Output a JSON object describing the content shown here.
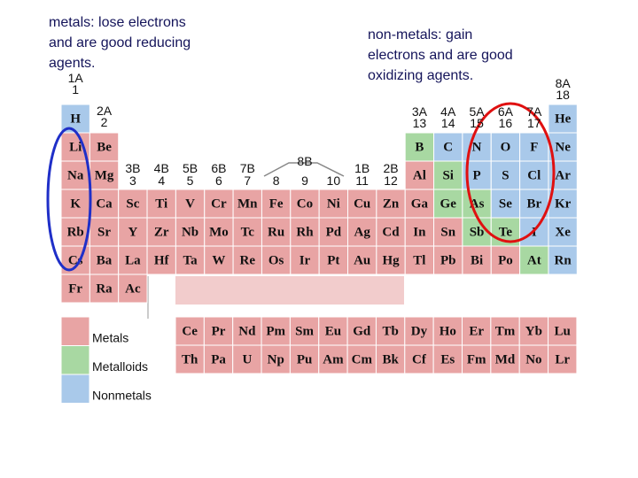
{
  "left_caption": [
    "metals: lose electrons",
    "and are good reducing",
    "agents."
  ],
  "right_caption": [
    "non-metals: gain",
    "electrons and are good",
    "oxidizing agents."
  ],
  "group_labels": [
    "1A",
    "1",
    "2A",
    "2",
    "3B",
    "3",
    "4B",
    "4",
    "5B",
    "5",
    "6B",
    "6",
    "7B",
    "7",
    "8B",
    "8",
    "9",
    "10",
    "1B",
    "11",
    "2B",
    "12",
    "3A",
    "13",
    "4A",
    "14",
    "5A",
    "15",
    "6A",
    "16",
    "7A",
    "17",
    "8A",
    "18"
  ],
  "table": {
    "rows": [
      [
        {
          "symbol": "H",
          "color": "#a9c9ea"
        },
        null,
        null,
        null,
        null,
        null,
        null,
        null,
        null,
        null,
        null,
        null,
        null,
        null,
        null,
        null,
        null,
        {
          "symbol": "He",
          "color": "#a9c9ea"
        }
      ],
      [
        {
          "symbol": "Li",
          "color": "#e8a4a4"
        },
        {
          "symbol": "Be",
          "color": "#e8a4a4"
        },
        null,
        null,
        null,
        null,
        null,
        null,
        null,
        null,
        null,
        null,
        {
          "symbol": "B",
          "color": "#a8d8a2"
        },
        {
          "symbol": "C",
          "color": "#a9c9ea"
        },
        {
          "symbol": "N",
          "color": "#a9c9ea"
        },
        {
          "symbol": "O",
          "color": "#a9c9ea"
        },
        {
          "symbol": "F",
          "color": "#a9c9ea"
        },
        {
          "symbol": "Ne",
          "color": "#a9c9ea"
        }
      ],
      [
        {
          "symbol": "Na",
          "color": "#e8a4a4"
        },
        {
          "symbol": "Mg",
          "color": "#e8a4a4"
        },
        null,
        null,
        null,
        null,
        null,
        null,
        null,
        null,
        null,
        null,
        {
          "symbol": "Al",
          "color": "#e8a4a4"
        },
        {
          "symbol": "Si",
          "color": "#a8d8a2"
        },
        {
          "symbol": "P",
          "color": "#a9c9ea"
        },
        {
          "symbol": "S",
          "color": "#a9c9ea"
        },
        {
          "symbol": "Cl",
          "color": "#a9c9ea"
        },
        {
          "symbol": "Ar",
          "color": "#a9c9ea"
        }
      ],
      [
        {
          "symbol": "K",
          "color": "#e8a4a4"
        },
        {
          "symbol": "Ca",
          "color": "#e8a4a4"
        },
        {
          "symbol": "Sc",
          "color": "#e8a4a4"
        },
        {
          "symbol": "Ti",
          "color": "#e8a4a4"
        },
        {
          "symbol": "V",
          "color": "#e8a4a4"
        },
        {
          "symbol": "Cr",
          "color": "#e8a4a4"
        },
        {
          "symbol": "Mn",
          "color": "#e8a4a4"
        },
        {
          "symbol": "Fe",
          "color": "#e8a4a4"
        },
        {
          "symbol": "Co",
          "color": "#e8a4a4"
        },
        {
          "symbol": "Ni",
          "color": "#e8a4a4"
        },
        {
          "symbol": "Cu",
          "color": "#e8a4a4"
        },
        {
          "symbol": "Zn",
          "color": "#e8a4a4"
        },
        {
          "symbol": "Ga",
          "color": "#e8a4a4"
        },
        {
          "symbol": "Ge",
          "color": "#a8d8a2"
        },
        {
          "symbol": "As",
          "color": "#a8d8a2"
        },
        {
          "symbol": "Se",
          "color": "#a9c9ea"
        },
        {
          "symbol": "Br",
          "color": "#a9c9ea"
        },
        {
          "symbol": "Kr",
          "color": "#a9c9ea"
        }
      ],
      [
        {
          "symbol": "Rb",
          "color": "#e8a4a4"
        },
        {
          "symbol": "Sr",
          "color": "#e8a4a4"
        },
        {
          "symbol": "Y",
          "color": "#e8a4a4"
        },
        {
          "symbol": "Zr",
          "color": "#e8a4a4"
        },
        {
          "symbol": "Nb",
          "color": "#e8a4a4"
        },
        {
          "symbol": "Mo",
          "color": "#e8a4a4"
        },
        {
          "symbol": "Tc",
          "color": "#e8a4a4"
        },
        {
          "symbol": "Ru",
          "color": "#e8a4a4"
        },
        {
          "symbol": "Rh",
          "color": "#e8a4a4"
        },
        {
          "symbol": "Pd",
          "color": "#e8a4a4"
        },
        {
          "symbol": "Ag",
          "color": "#e8a4a4"
        },
        {
          "symbol": "Cd",
          "color": "#e8a4a4"
        },
        {
          "symbol": "In",
          "color": "#e8a4a4"
        },
        {
          "symbol": "Sn",
          "color": "#e8a4a4"
        },
        {
          "symbol": "Sb",
          "color": "#a8d8a2"
        },
        {
          "symbol": "Te",
          "color": "#a8d8a2"
        },
        {
          "symbol": "I",
          "color": "#a9c9ea"
        },
        {
          "symbol": "Xe",
          "color": "#a9c9ea"
        }
      ],
      [
        {
          "symbol": "Cs",
          "color": "#e8a4a4"
        },
        {
          "symbol": "Ba",
          "color": "#e8a4a4"
        },
        {
          "symbol": "La",
          "color": "#e8a4a4"
        },
        {
          "symbol": "Hf",
          "color": "#e8a4a4"
        },
        {
          "symbol": "Ta",
          "color": "#e8a4a4"
        },
        {
          "symbol": "W",
          "color": "#e8a4a4"
        },
        {
          "symbol": "Re",
          "color": "#e8a4a4"
        },
        {
          "symbol": "Os",
          "color": "#e8a4a4"
        },
        {
          "symbol": "Ir",
          "color": "#e8a4a4"
        },
        {
          "symbol": "Pt",
          "color": "#e8a4a4"
        },
        {
          "symbol": "Au",
          "color": "#e8a4a4"
        },
        {
          "symbol": "Hg",
          "color": "#e8a4a4"
        },
        {
          "symbol": "Tl",
          "color": "#e8a4a4"
        },
        {
          "symbol": "Pb",
          "color": "#e8a4a4"
        },
        {
          "symbol": "Bi",
          "color": "#e8a4a4"
        },
        {
          "symbol": "Po",
          "color": "#e8a4a4"
        },
        {
          "symbol": "At",
          "color": "#a8d8a2"
        },
        {
          "symbol": "Rn",
          "color": "#a9c9ea"
        }
      ],
      [
        {
          "symbol": "Fr",
          "color": "#e8a4a4"
        },
        {
          "symbol": "Ra",
          "color": "#e8a4a4"
        },
        {
          "symbol": "Ac",
          "color": "#e8a4a4"
        }
      ]
    ],
    "lanthanides": [
      "Ce",
      "Pr",
      "Nd",
      "Pm",
      "Sm",
      "Eu",
      "Gd",
      "Tb",
      "Dy",
      "Ho",
      "Er",
      "Tm",
      "Yb",
      "Lu"
    ],
    "actinides": [
      "Th",
      "Pa",
      "U",
      "Np",
      "Pu",
      "Am",
      "Cm",
      "Bk",
      "Cf",
      "Es",
      "Fm",
      "Md",
      "No",
      "Lr"
    ],
    "inner_color": "#e8a4a4"
  },
  "legend": [
    {
      "label": "Metals",
      "color": "#e8a4a4"
    },
    {
      "label": "Metalloids",
      "color": "#a8d8a2"
    },
    {
      "label": "Nonmetals",
      "color": "#a9c9ea"
    }
  ]
}
